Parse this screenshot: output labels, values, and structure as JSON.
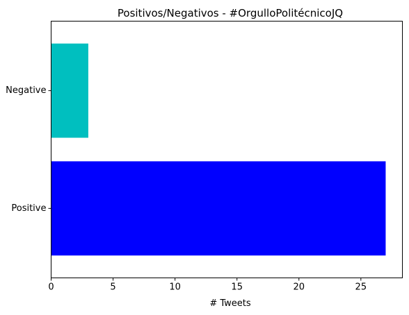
{
  "chart_data": {
    "type": "bar",
    "orientation": "horizontal",
    "title": "Positivos/Negativos - #OrgulloPolitécnicoJQ",
    "xlabel": "# Tweets",
    "ylabel": "",
    "categories": [
      "Positive",
      "Negative"
    ],
    "values": [
      27,
      3
    ],
    "colors": [
      "#0000ff",
      "#00bfbf"
    ],
    "xlim": [
      0,
      28.35
    ],
    "xticks": [
      0,
      5,
      10,
      15,
      20,
      25
    ],
    "grid": false,
    "legend": false
  }
}
